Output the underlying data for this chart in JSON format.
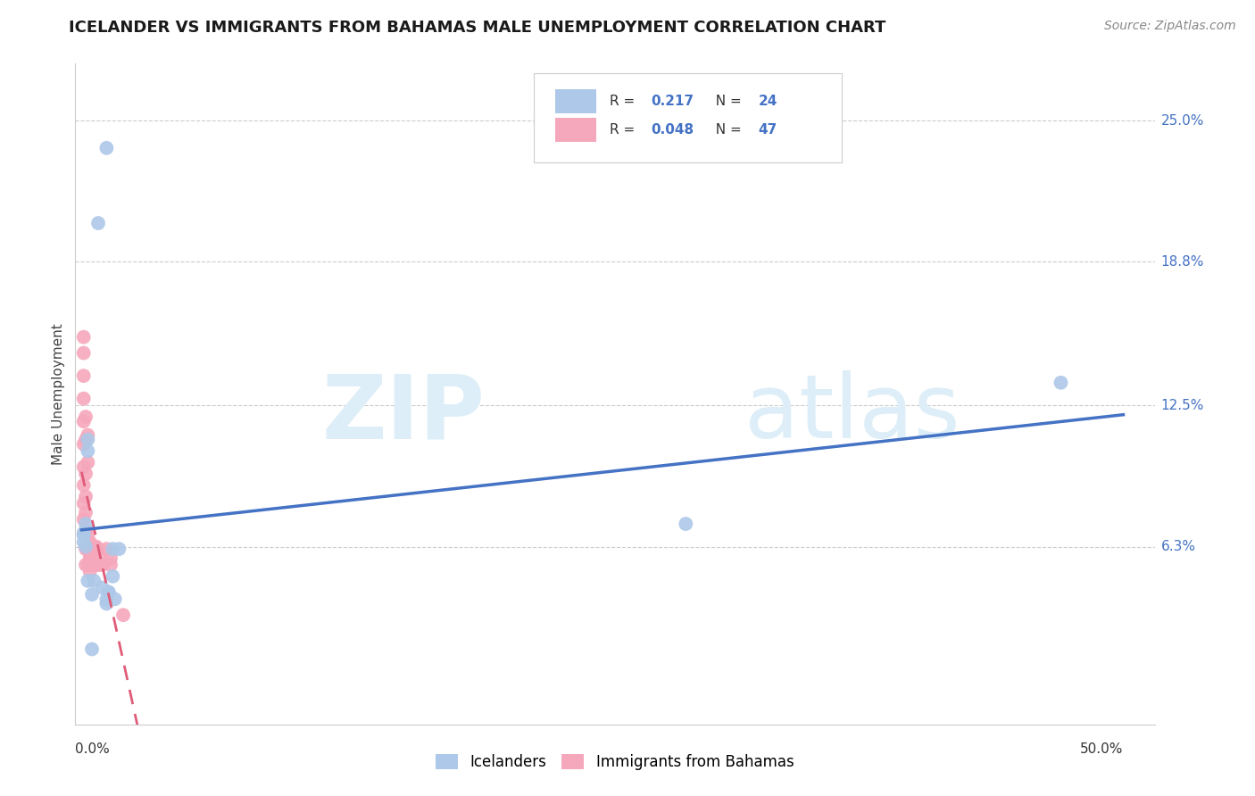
{
  "title": "ICELANDER VS IMMIGRANTS FROM BAHAMAS MALE UNEMPLOYMENT CORRELATION CHART",
  "source": "Source: ZipAtlas.com",
  "ylabel": "Male Unemployment",
  "yticks_labels": [
    "25.0%",
    "18.8%",
    "12.5%",
    "6.3%"
  ],
  "yticks_values": [
    0.25,
    0.188,
    0.125,
    0.063
  ],
  "xlim": [
    0.0,
    0.5
  ],
  "ylim": [
    -0.015,
    0.275
  ],
  "icelanders_x": [
    0.012,
    0.008,
    0.003,
    0.003,
    0.001,
    0.001,
    0.001,
    0.002,
    0.002,
    0.015,
    0.018,
    0.015,
    0.006,
    0.01,
    0.013,
    0.013,
    0.016,
    0.47,
    0.29,
    0.003,
    0.005,
    0.012,
    0.012,
    0.005
  ],
  "icelanders_y": [
    0.238,
    0.205,
    0.11,
    0.105,
    0.069,
    0.068,
    0.065,
    0.073,
    0.063,
    0.062,
    0.062,
    0.05,
    0.048,
    0.045,
    0.043,
    0.043,
    0.04,
    0.135,
    0.073,
    0.048,
    0.042,
    0.04,
    0.038,
    0.018
  ],
  "bahamas_x": [
    0.001,
    0.001,
    0.001,
    0.001,
    0.001,
    0.001,
    0.001,
    0.001,
    0.001,
    0.001,
    0.002,
    0.002,
    0.002,
    0.002,
    0.002,
    0.002,
    0.002,
    0.002,
    0.003,
    0.003,
    0.003,
    0.003,
    0.003,
    0.004,
    0.004,
    0.004,
    0.004,
    0.004,
    0.004,
    0.005,
    0.005,
    0.005,
    0.005,
    0.006,
    0.006,
    0.006,
    0.006,
    0.007,
    0.007,
    0.008,
    0.008,
    0.009,
    0.01,
    0.012,
    0.014,
    0.014,
    0.02
  ],
  "bahamas_y": [
    0.155,
    0.148,
    0.138,
    0.128,
    0.118,
    0.108,
    0.098,
    0.09,
    0.082,
    0.075,
    0.12,
    0.11,
    0.095,
    0.085,
    0.078,
    0.07,
    0.062,
    0.055,
    0.112,
    0.1,
    0.068,
    0.062,
    0.055,
    0.065,
    0.062,
    0.06,
    0.058,
    0.055,
    0.052,
    0.063,
    0.063,
    0.06,
    0.055,
    0.063,
    0.062,
    0.06,
    0.055,
    0.063,
    0.055,
    0.062,
    0.055,
    0.058,
    0.055,
    0.062,
    0.058,
    0.055,
    0.033
  ],
  "R_icelanders": 0.217,
  "N_icelanders": 24,
  "R_bahamas": 0.048,
  "N_bahamas": 47,
  "color_icelanders": "#adc8e8",
  "color_bahamas": "#f5a8bc",
  "color_line_icelanders": "#4472c4",
  "color_line_bahamas": "#e05c78",
  "legend_labels": [
    "Icelanders",
    "Immigrants from Bahamas"
  ],
  "background_color": "#ffffff",
  "grid_color": "#cccccc"
}
